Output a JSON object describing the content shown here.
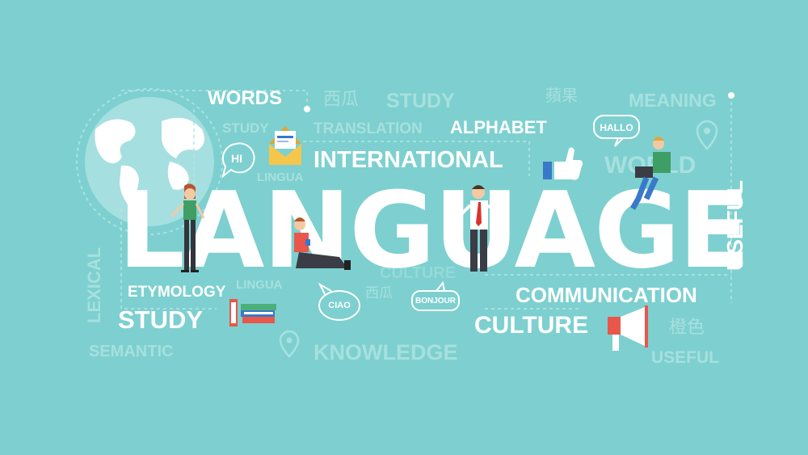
{
  "headline": "LANGUAGE",
  "words": {
    "words": "WORDS",
    "study_top": "STUDY",
    "meaning": "MEANING",
    "study_small": "STUDY",
    "translation": "TRANSLATION",
    "alphabet": "ALPHABET",
    "international": "INTERNATIONAL",
    "lingua_top": "LINGUA",
    "world": "WORLD",
    "useful_vertical": "USEFUL",
    "lexical": "LEXICAL",
    "etymology": "ETYMOLOGY",
    "lingua_bottom": "LINGUA",
    "study_bottom": "STUDY",
    "communication": "COMMUNICATION",
    "culture": "CULTURE",
    "semantic": "SEMANTIC",
    "knowledge": "KNOWLEDGE",
    "useful_bottom": "USEFUL",
    "culture_ghost": "CULTURE",
    "chinese_1": "西瓜",
    "chinese_2": "蘋果",
    "chinese_3": "西瓜",
    "chinese_4": "橙色"
  },
  "bubbles": {
    "hi": "HI",
    "hallo": "HALLO",
    "ciao": "CIAO",
    "bonjour": "BONJOUR"
  },
  "colors": {
    "background": "#7dd0cf",
    "text_white": "#ffffff",
    "text_faint": "#a6e0df",
    "globe": "#a9e1e2",
    "accent_red": "#e8574a",
    "accent_blue": "#3a78c9",
    "accent_yellow": "#f5c64b"
  }
}
